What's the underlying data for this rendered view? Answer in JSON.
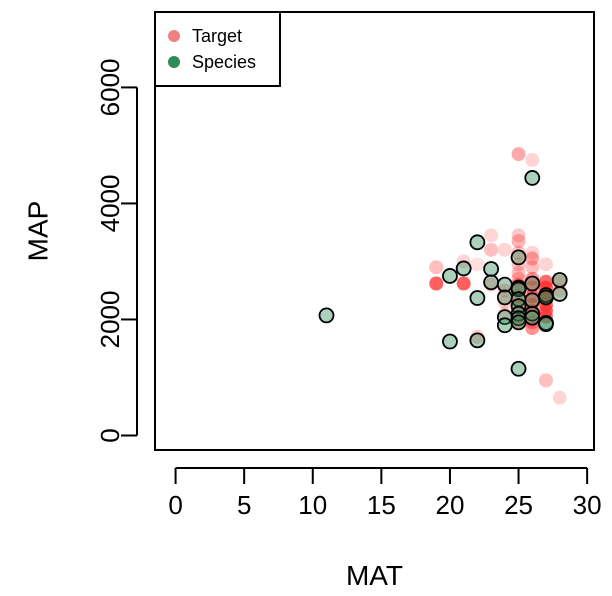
{
  "chart_data": {
    "type": "scatter",
    "xlabel": "MAT",
    "ylabel": "MAP",
    "xlim": [
      -1.5,
      30.5
    ],
    "ylim": [
      -250,
      7300
    ],
    "xticks": [
      0,
      5,
      10,
      15,
      20,
      25,
      30
    ],
    "yticks": [
      0,
      2000,
      4000,
      6000
    ],
    "legend_position": "top-left",
    "legend": [
      {
        "label": "Target",
        "color": "#f08080"
      },
      {
        "label": "Species",
        "color": "#2e8b57"
      }
    ],
    "series": [
      {
        "name": "Target",
        "color": "#ff2a2a",
        "style": "translucent-fill",
        "points": [
          {
            "x": 19,
            "y": 2900,
            "a": 0.3
          },
          {
            "x": 19,
            "y": 2620,
            "a": 0.75
          },
          {
            "x": 21,
            "y": 2620,
            "a": 0.75
          },
          {
            "x": 21,
            "y": 3000,
            "a": 0.2
          },
          {
            "x": 22,
            "y": 1700,
            "a": 0.25
          },
          {
            "x": 22,
            "y": 2950,
            "a": 0.15
          },
          {
            "x": 23,
            "y": 3450,
            "a": 0.2
          },
          {
            "x": 23,
            "y": 3200,
            "a": 0.3
          },
          {
            "x": 23,
            "y": 2600,
            "a": 0.25
          },
          {
            "x": 24,
            "y": 3200,
            "a": 0.2
          },
          {
            "x": 24,
            "y": 2500,
            "a": 0.3
          },
          {
            "x": 24,
            "y": 2300,
            "a": 0.25
          },
          {
            "x": 24,
            "y": 2100,
            "a": 0.2
          },
          {
            "x": 25,
            "y": 4850,
            "a": 0.4
          },
          {
            "x": 25,
            "y": 3450,
            "a": 0.25
          },
          {
            "x": 25,
            "y": 3350,
            "a": 0.35
          },
          {
            "x": 25,
            "y": 3150,
            "a": 0.3
          },
          {
            "x": 25,
            "y": 2950,
            "a": 0.3
          },
          {
            "x": 25,
            "y": 2800,
            "a": 0.3
          },
          {
            "x": 25,
            "y": 2700,
            "a": 0.35
          },
          {
            "x": 25,
            "y": 2600,
            "a": 0.5
          },
          {
            "x": 25,
            "y": 2400,
            "a": 0.5
          },
          {
            "x": 25,
            "y": 2200,
            "a": 0.45
          },
          {
            "x": 25,
            "y": 2050,
            "a": 0.4
          },
          {
            "x": 25,
            "y": 1950,
            "a": 0.4
          },
          {
            "x": 26,
            "y": 4750,
            "a": 0.2
          },
          {
            "x": 26,
            "y": 3150,
            "a": 0.2
          },
          {
            "x": 26,
            "y": 3050,
            "a": 0.4
          },
          {
            "x": 26,
            "y": 2900,
            "a": 0.3
          },
          {
            "x": 26,
            "y": 2700,
            "a": 0.5
          },
          {
            "x": 26,
            "y": 2550,
            "a": 0.55
          },
          {
            "x": 26,
            "y": 2400,
            "a": 0.6
          },
          {
            "x": 26,
            "y": 2250,
            "a": 0.55
          },
          {
            "x": 26,
            "y": 2150,
            "a": 0.5
          },
          {
            "x": 26,
            "y": 1950,
            "a": 0.5
          },
          {
            "x": 26,
            "y": 1850,
            "a": 0.5
          },
          {
            "x": 27,
            "y": 2950,
            "a": 0.2
          },
          {
            "x": 27,
            "y": 2650,
            "a": 0.7
          },
          {
            "x": 27,
            "y": 2550,
            "a": 0.75
          },
          {
            "x": 27,
            "y": 2450,
            "a": 0.7
          },
          {
            "x": 27,
            "y": 2350,
            "a": 0.75
          },
          {
            "x": 27,
            "y": 2250,
            "a": 0.7
          },
          {
            "x": 27,
            "y": 2150,
            "a": 0.7
          },
          {
            "x": 27,
            "y": 2050,
            "a": 0.65
          },
          {
            "x": 27,
            "y": 950,
            "a": 0.3
          },
          {
            "x": 28,
            "y": 2650,
            "a": 0.3
          },
          {
            "x": 28,
            "y": 2500,
            "a": 0.25
          },
          {
            "x": 28,
            "y": 650,
            "a": 0.2
          }
        ]
      },
      {
        "name": "Species",
        "color": "#2e8b57",
        "style": "outlined",
        "points": [
          {
            "x": 11,
            "y": 2070
          },
          {
            "x": 20,
            "y": 2750
          },
          {
            "x": 20,
            "y": 1620
          },
          {
            "x": 21,
            "y": 2880
          },
          {
            "x": 22,
            "y": 3330
          },
          {
            "x": 22,
            "y": 2370
          },
          {
            "x": 22,
            "y": 1640
          },
          {
            "x": 23,
            "y": 2870
          },
          {
            "x": 23,
            "y": 2640
          },
          {
            "x": 24,
            "y": 2600
          },
          {
            "x": 24,
            "y": 2380
          },
          {
            "x": 24,
            "y": 2040
          },
          {
            "x": 24,
            "y": 1900
          },
          {
            "x": 25,
            "y": 3070
          },
          {
            "x": 25,
            "y": 2550
          },
          {
            "x": 25,
            "y": 2520
          },
          {
            "x": 25,
            "y": 2350
          },
          {
            "x": 25,
            "y": 2230
          },
          {
            "x": 25,
            "y": 2100
          },
          {
            "x": 25,
            "y": 2020
          },
          {
            "x": 25,
            "y": 1950
          },
          {
            "x": 25,
            "y": 1150
          },
          {
            "x": 26,
            "y": 4440
          },
          {
            "x": 26,
            "y": 2620
          },
          {
            "x": 26,
            "y": 2330
          },
          {
            "x": 26,
            "y": 2100
          },
          {
            "x": 26,
            "y": 2030
          },
          {
            "x": 27,
            "y": 2420
          },
          {
            "x": 27,
            "y": 2380
          },
          {
            "x": 27,
            "y": 1940
          },
          {
            "x": 27,
            "y": 1920
          },
          {
            "x": 28,
            "y": 2680
          },
          {
            "x": 28,
            "y": 2440
          }
        ]
      }
    ]
  }
}
